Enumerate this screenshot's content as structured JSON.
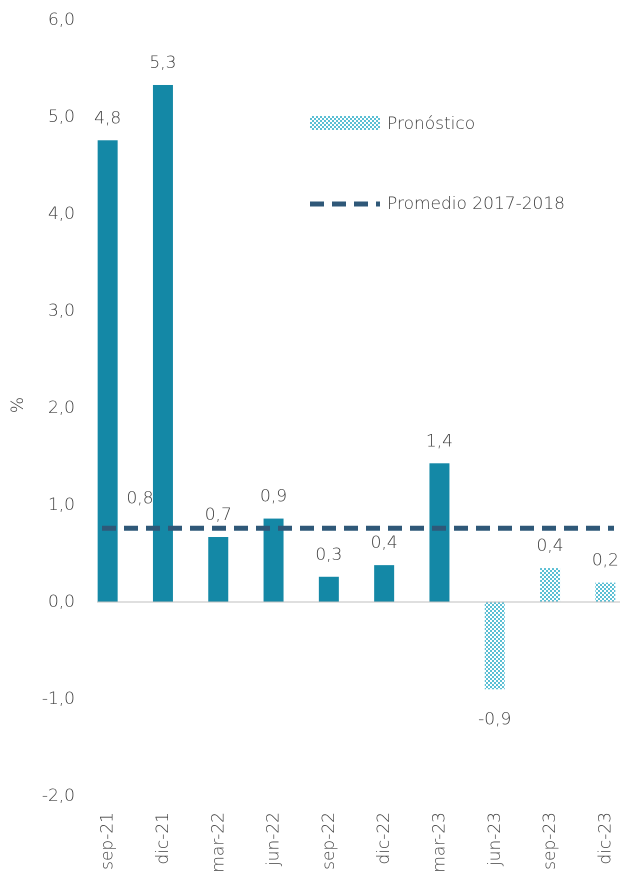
{
  "chart_data": {
    "type": "bar",
    "y_label": "%",
    "categories": [
      "sep-21",
      "dic-21",
      "mar-22",
      "jun-22",
      "sep-22",
      "dic-22",
      "mar-23",
      "jun-23",
      "sep-23",
      "dic-23"
    ],
    "series": [
      {
        "color": "#1488a6",
        "values": [
          4.76,
          5.33,
          0.67,
          0.86,
          0.26,
          0.38,
          1.43,
          null,
          null,
          null
        ],
        "value_labels": [
          "4,8",
          "5,3",
          "0,7",
          "0,9",
          "0,3",
          "0,4",
          "1,4",
          null,
          null,
          null
        ]
      },
      {
        "name": "Pronóstico",
        "color": "#7fd0e0",
        "pattern": "dots",
        "values": [
          null,
          null,
          null,
          null,
          null,
          null,
          null,
          -0.9,
          0.35,
          0.2
        ],
        "value_labels": [
          null,
          null,
          null,
          null,
          null,
          null,
          null,
          "-0,9",
          "0,4",
          "0,2"
        ]
      }
    ],
    "reference_line": {
      "name": "Promedio 2017-2018",
      "value": 0.76,
      "value_label": "0,8",
      "color": "#2f5878",
      "dashed": true
    },
    "ylim": [
      -2,
      6
    ],
    "yticks": [
      {
        "value": -2,
        "label": "-2,0"
      },
      {
        "value": -1,
        "label": "-1,0"
      },
      {
        "value": 0,
        "label": "0,0"
      },
      {
        "value": 1,
        "label": "1,0"
      },
      {
        "value": 2,
        "label": "2,0"
      },
      {
        "value": 3,
        "label": "3,0"
      },
      {
        "value": 4,
        "label": "4,0"
      },
      {
        "value": 5,
        "label": "5,0"
      },
      {
        "value": 6,
        "label": "6,0"
      }
    ],
    "grid": false
  }
}
